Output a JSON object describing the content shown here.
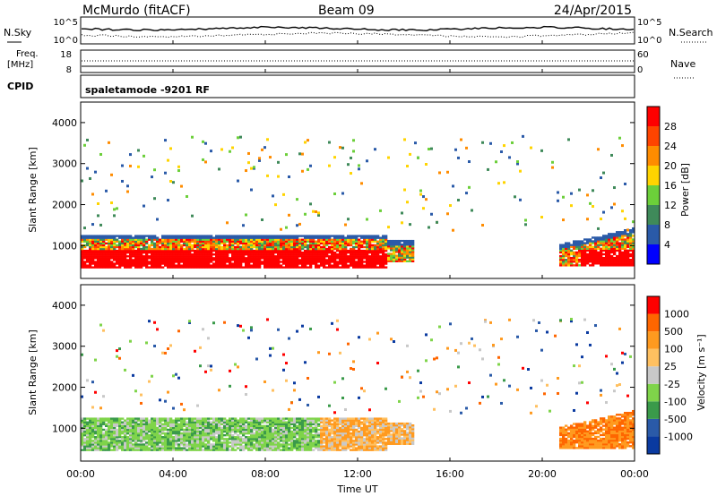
{
  "header": {
    "station": "McMurdo (fitACF)",
    "beam": "Beam 09",
    "date": "24/Apr/2015"
  },
  "noise_panel": {
    "left_label": "N.Sky",
    "left_top_tick": "10^5",
    "left_bottom_tick": "10^0",
    "right_top_tick": "10^5",
    "right_bottom_tick": "10^0",
    "right_label": "N.Search"
  },
  "freq_panel": {
    "left_label_top": "Freq.",
    "left_label_bottom": "[MHz]",
    "left_top_tick": "18",
    "left_bottom_tick": "8",
    "right_top_tick": "60",
    "right_bottom_tick": "0",
    "right_label": "Nave"
  },
  "cpid": {
    "label": "CPID",
    "text": "spaletamode -9201 RF"
  },
  "colors": {
    "power": [
      "#0000ff",
      "#2a5aa8",
      "#3f8a5a",
      "#6ccf3a",
      "#ffd400",
      "#ff8c00",
      "#ff4400",
      "#ff0000"
    ],
    "velocity": [
      "#ff0000",
      "#ff6600",
      "#ff9a1f",
      "#ffc060",
      "#c8c8c8",
      "#7fd44a",
      "#3a9a4a",
      "#2a5aa8",
      "#0a3aa0"
    ]
  },
  "chart_data": [
    {
      "type": "heatmap",
      "quantity": "Power",
      "ylabel": "Slant Range [km]",
      "yticks": [
        "1000",
        "2000",
        "3000",
        "4000"
      ],
      "ylim": [
        200,
        4500
      ],
      "xlim": [
        "00:00",
        "24:00"
      ],
      "colorbar_label": "Power [dB]",
      "colorbar_ticks": [
        "4",
        "8",
        "12",
        "16",
        "20",
        "24",
        "28"
      ],
      "colorbar_range": [
        0,
        32
      ]
    },
    {
      "type": "heatmap",
      "quantity": "Velocity",
      "ylabel": "Slant Range [km]",
      "yticks": [
        "1000",
        "2000",
        "3000",
        "4000"
      ],
      "ylim": [
        200,
        4500
      ],
      "xlim": [
        "00:00",
        "24:00"
      ],
      "xlabel": "Time UT",
      "xticks": [
        "00:00",
        "04:00",
        "08:00",
        "12:00",
        "16:00",
        "20:00",
        "00:00"
      ],
      "colorbar_label": "Velocity [m s⁻¹]",
      "colorbar_ticks": [
        "1000",
        "500",
        "100",
        "25",
        "-25",
        "-100",
        "-500",
        "-1000"
      ]
    }
  ]
}
